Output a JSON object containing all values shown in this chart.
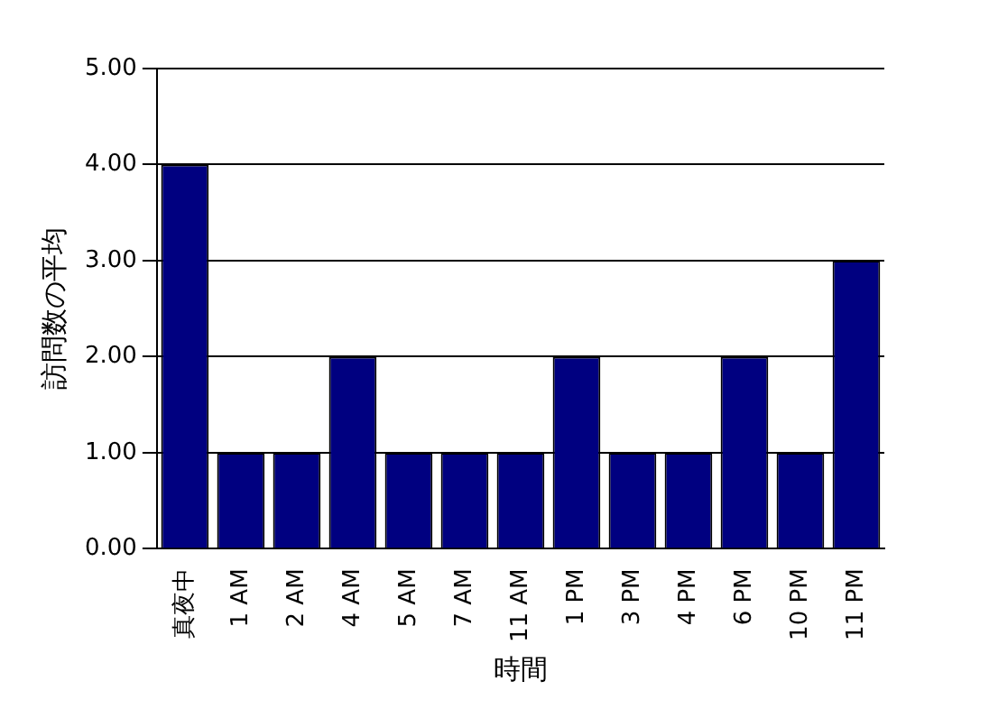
{
  "chart_data": {
    "type": "bar",
    "xlabel": "時間",
    "ylabel": "訪問数の平均",
    "categories": [
      "真夜中",
      "1 AM",
      "2 AM",
      "4 AM",
      "5 AM",
      "7 AM",
      "11 AM",
      "1 PM",
      "3 PM",
      "4 PM",
      "6 PM",
      "10 PM",
      "11 PM"
    ],
    "values": [
      4,
      1,
      1,
      2,
      1,
      1,
      1,
      2,
      1,
      1,
      2,
      1,
      3
    ],
    "color": "#000080",
    "ylim": [
      0,
      5
    ],
    "yticks": [
      {
        "value": 0,
        "label": "0.00"
      },
      {
        "value": 1,
        "label": "1.00"
      },
      {
        "value": 2,
        "label": "2.00"
      },
      {
        "value": 3,
        "label": "3.00"
      },
      {
        "value": 4,
        "label": "4.00"
      },
      {
        "value": 5,
        "label": "5.00"
      }
    ],
    "grid": "y"
  }
}
